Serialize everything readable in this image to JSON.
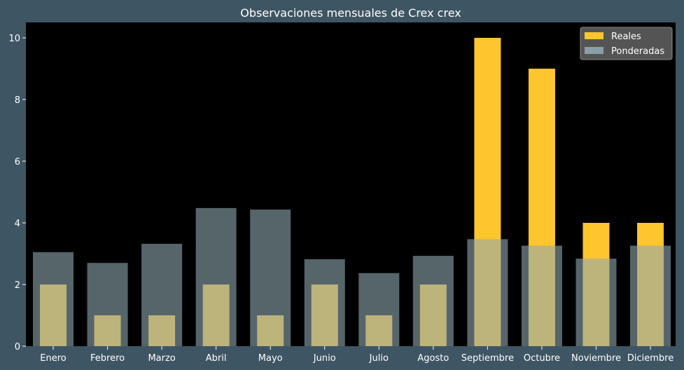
{
  "chart_data": {
    "type": "bar",
    "title": "Observaciones mensuales de Crex crex",
    "xlabel": "",
    "ylabel": "",
    "categories": [
      "Enero",
      "Febrero",
      "Marzo",
      "Abril",
      "Mayo",
      "Junio",
      "Julio",
      "Agosto",
      "Septiembre",
      "Octubre",
      "Noviembre",
      "Diciembre"
    ],
    "series": [
      {
        "name": "Reales",
        "values": [
          2,
          1,
          1,
          2,
          1,
          2,
          1,
          2,
          10,
          9,
          4,
          4
        ],
        "color": "#ffc52c"
      },
      {
        "name": "Ponderadas",
        "values": [
          3.05,
          2.7,
          3.32,
          4.48,
          4.43,
          2.82,
          2.37,
          2.93,
          3.47,
          3.26,
          2.84,
          3.26
        ],
        "color": "#8fa9b0"
      }
    ],
    "ylim": [
      0,
      10.5
    ],
    "yticks": [
      0,
      2,
      4,
      6,
      8,
      10
    ],
    "grid": false,
    "legend_position": "top-right",
    "colors": {
      "plot_background": "#000000",
      "figure_background": "#3e5563",
      "text": "#ffffff"
    }
  }
}
